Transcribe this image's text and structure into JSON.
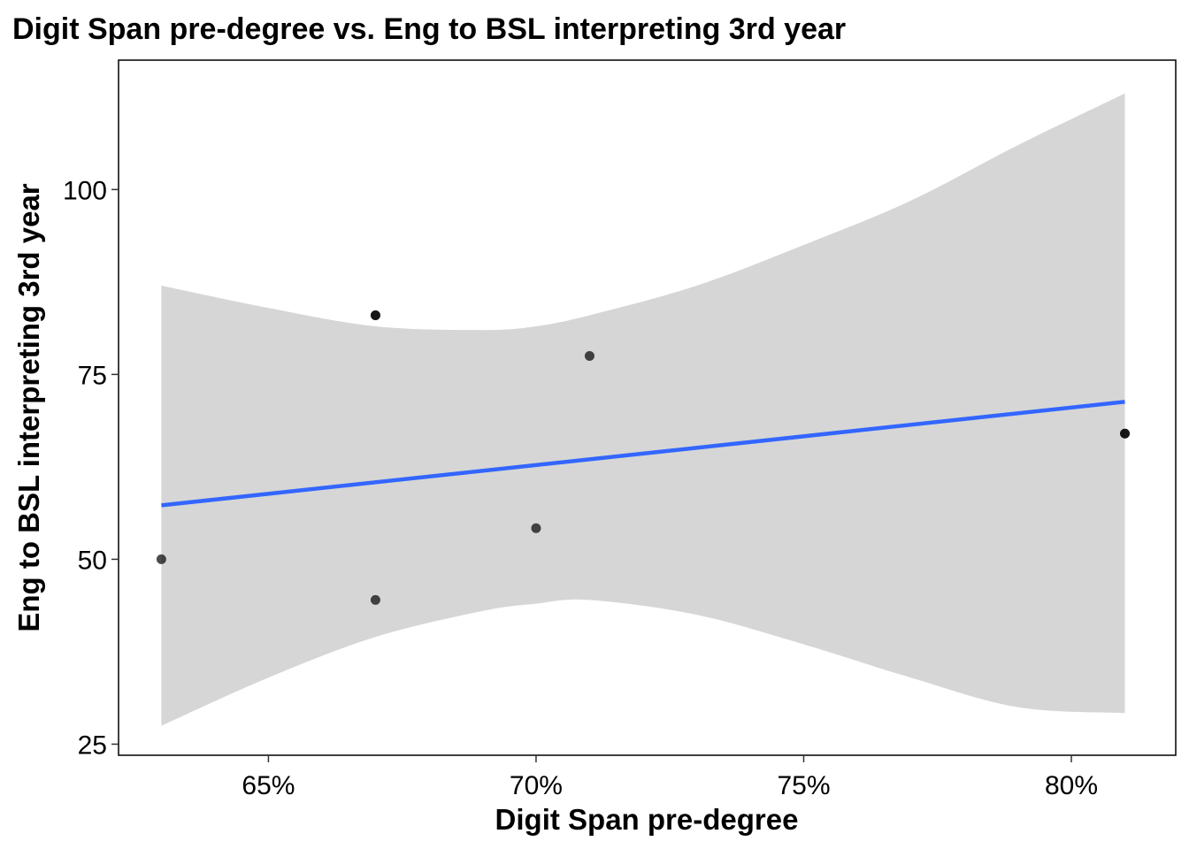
{
  "chart_data": {
    "type": "scatter",
    "title": "Digit Span pre-degree vs. Eng to BSL interpreting 3rd year",
    "xlabel": "Digit Span pre-degree",
    "ylabel": "Eng to BSL interpreting 3rd year",
    "xlim": [
      0.622,
      0.8195
    ],
    "ylim": [
      23.5,
      117.5
    ],
    "x_ticks": [
      0.65,
      0.7,
      0.75,
      0.8
    ],
    "x_tick_labels": [
      "65%",
      "70%",
      "75%",
      "80%"
    ],
    "y_ticks": [
      25,
      50,
      75,
      100
    ],
    "y_tick_labels": [
      "25",
      "50",
      "75",
      "100"
    ],
    "grid": false,
    "points": [
      {
        "x": 0.63,
        "y": 50
      },
      {
        "x": 0.67,
        "y": 83
      },
      {
        "x": 0.67,
        "y": 83
      },
      {
        "x": 0.67,
        "y": 44.5
      },
      {
        "x": 0.7,
        "y": 54.2
      },
      {
        "x": 0.71,
        "y": 77.5
      },
      {
        "x": 0.81,
        "y": 67
      },
      {
        "x": 0.81,
        "y": 67
      }
    ],
    "trend_line": {
      "method": "linear",
      "x": [
        0.63,
        0.81
      ],
      "y": [
        57.3,
        71.3
      ]
    },
    "confidence_band": {
      "x": [
        0.63,
        0.65,
        0.67,
        0.69,
        0.7,
        0.71,
        0.73,
        0.75,
        0.77,
        0.79,
        0.81
      ],
      "lower": [
        27.5,
        34.0,
        39.5,
        43.0,
        44.0,
        44.5,
        42.5,
        38.5,
        34.0,
        30.0,
        29.2
      ],
      "upper": [
        87.0,
        84.0,
        81.5,
        81.0,
        81.5,
        83.0,
        87.0,
        92.5,
        98.5,
        106.0,
        113.0
      ]
    },
    "colors": {
      "point": "#000000",
      "line": "#3366FF",
      "band": "#D6D6D6",
      "frame": "#000000"
    }
  }
}
